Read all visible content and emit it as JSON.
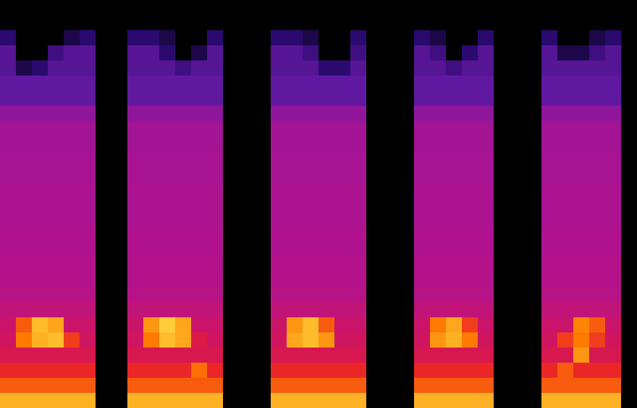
{
  "chart_data": {
    "type": "heatmap",
    "tick_labels": false,
    "grid": false,
    "xlim": [
      -0.5,
      39.5
    ],
    "ylim": [
      -0.5,
      26.5
    ],
    "zlim": [
      0,
      100
    ],
    "z": [
      [
        90,
        90,
        90,
        90,
        90,
        90,
        0,
        0,
        90,
        90,
        90,
        90,
        90,
        90,
        0,
        0,
        0,
        90,
        90,
        90,
        90,
        90,
        90,
        0,
        0,
        0,
        90,
        90,
        90,
        90,
        90,
        0,
        0,
        0,
        90,
        90,
        90,
        90,
        90,
        0
      ],
      [
        75,
        75,
        75,
        75,
        75,
        75,
        0,
        0,
        75,
        75,
        75,
        75,
        75,
        75,
        0,
        0,
        0,
        75,
        75,
        75,
        75,
        75,
        75,
        0,
        0,
        0,
        75,
        75,
        75,
        75,
        75,
        0,
        0,
        0,
        75,
        75,
        75,
        75,
        75,
        0
      ],
      [
        66,
        66,
        66,
        66,
        66,
        66,
        0,
        0,
        66,
        66,
        66,
        66,
        78,
        66,
        0,
        0,
        0,
        66,
        66,
        66,
        66,
        66,
        66,
        0,
        0,
        0,
        66,
        66,
        66,
        66,
        66,
        0,
        0,
        0,
        66,
        75,
        66,
        66,
        66,
        0
      ],
      [
        58,
        58,
        58,
        58,
        58,
        58,
        0,
        0,
        58,
        58,
        58,
        58,
        58,
        58,
        0,
        0,
        0,
        58,
        58,
        58,
        58,
        58,
        58,
        0,
        0,
        0,
        58,
        58,
        58,
        58,
        58,
        0,
        0,
        0,
        58,
        58,
        85,
        58,
        58,
        0
      ],
      [
        55,
        80,
        90,
        92,
        70,
        55,
        0,
        0,
        55,
        80,
        92,
        88,
        60,
        55,
        0,
        0,
        0,
        55,
        88,
        92,
        85,
        55,
        55,
        0,
        0,
        0,
        55,
        85,
        90,
        80,
        55,
        0,
        0,
        0,
        55,
        70,
        80,
        70,
        55,
        0
      ],
      [
        53,
        75,
        92,
        88,
        53,
        53,
        0,
        0,
        53,
        85,
        95,
        88,
        53,
        53,
        0,
        0,
        0,
        53,
        85,
        92,
        75,
        53,
        53,
        0,
        0,
        0,
        53,
        80,
        88,
        70,
        53,
        0,
        0,
        0,
        53,
        53,
        82,
        75,
        53,
        0
      ],
      [
        50,
        50,
        50,
        50,
        50,
        50,
        0,
        0,
        50,
        50,
        50,
        50,
        50,
        50,
        0,
        0,
        0,
        50,
        50,
        50,
        50,
        50,
        50,
        0,
        0,
        0,
        50,
        50,
        50,
        50,
        50,
        0,
        0,
        0,
        50,
        50,
        50,
        50,
        50,
        0
      ],
      [
        47,
        47,
        47,
        47,
        47,
        47,
        0,
        0,
        47,
        47,
        47,
        47,
        47,
        47,
        0,
        0,
        0,
        47,
        47,
        47,
        47,
        47,
        47,
        0,
        0,
        0,
        47,
        47,
        47,
        47,
        47,
        0,
        0,
        0,
        47,
        47,
        47,
        47,
        47,
        0
      ],
      [
        46,
        46,
        46,
        46,
        46,
        46,
        0,
        0,
        46,
        46,
        46,
        46,
        46,
        46,
        0,
        0,
        0,
        46,
        46,
        46,
        46,
        46,
        46,
        0,
        0,
        0,
        46,
        46,
        46,
        46,
        46,
        0,
        0,
        0,
        46,
        46,
        46,
        46,
        46,
        0
      ],
      [
        46,
        46,
        46,
        46,
        46,
        46,
        0,
        0,
        46,
        46,
        46,
        46,
        46,
        46,
        0,
        0,
        0,
        46,
        46,
        46,
        46,
        46,
        46,
        0,
        0,
        0,
        46,
        46,
        46,
        46,
        46,
        0,
        0,
        0,
        46,
        46,
        46,
        46,
        46,
        0
      ],
      [
        45,
        45,
        45,
        45,
        45,
        45,
        0,
        0,
        45,
        45,
        45,
        45,
        45,
        45,
        0,
        0,
        0,
        45,
        45,
        45,
        45,
        45,
        45,
        0,
        0,
        0,
        45,
        45,
        45,
        45,
        45,
        0,
        0,
        0,
        45,
        45,
        45,
        45,
        45,
        0
      ],
      [
        45,
        45,
        45,
        45,
        45,
        45,
        0,
        0,
        45,
        45,
        45,
        45,
        45,
        45,
        0,
        0,
        0,
        45,
        45,
        45,
        45,
        45,
        45,
        0,
        0,
        0,
        45,
        45,
        45,
        45,
        45,
        0,
        0,
        0,
        45,
        45,
        45,
        45,
        45,
        0
      ],
      [
        44,
        44,
        44,
        44,
        44,
        44,
        0,
        0,
        44,
        44,
        44,
        44,
        44,
        44,
        0,
        0,
        0,
        44,
        44,
        44,
        44,
        44,
        44,
        0,
        0,
        0,
        44,
        44,
        44,
        44,
        44,
        0,
        0,
        0,
        44,
        44,
        44,
        44,
        44,
        0
      ],
      [
        44,
        44,
        44,
        44,
        44,
        44,
        0,
        0,
        44,
        44,
        44,
        44,
        44,
        44,
        0,
        0,
        0,
        44,
        44,
        44,
        44,
        44,
        44,
        0,
        0,
        0,
        44,
        44,
        44,
        44,
        44,
        0,
        0,
        0,
        44,
        44,
        44,
        44,
        44,
        0
      ],
      [
        44,
        44,
        44,
        44,
        44,
        44,
        0,
        0,
        44,
        44,
        44,
        44,
        44,
        44,
        0,
        0,
        0,
        44,
        44,
        44,
        44,
        44,
        44,
        0,
        0,
        0,
        44,
        44,
        44,
        44,
        44,
        0,
        0,
        0,
        44,
        44,
        44,
        44,
        44,
        0
      ],
      [
        43,
        43,
        43,
        43,
        43,
        43,
        0,
        0,
        43,
        43,
        43,
        43,
        43,
        43,
        0,
        0,
        0,
        43,
        43,
        43,
        43,
        43,
        43,
        0,
        0,
        0,
        43,
        43,
        43,
        43,
        43,
        0,
        0,
        0,
        43,
        43,
        43,
        43,
        43,
        0
      ],
      [
        43,
        43,
        43,
        43,
        43,
        43,
        0,
        0,
        43,
        43,
        43,
        43,
        43,
        43,
        0,
        0,
        0,
        43,
        43,
        43,
        43,
        43,
        43,
        0,
        0,
        0,
        43,
        43,
        43,
        43,
        43,
        0,
        0,
        0,
        43,
        43,
        43,
        43,
        43,
        0
      ],
      [
        42,
        42,
        42,
        42,
        42,
        42,
        0,
        0,
        42,
        42,
        42,
        42,
        42,
        42,
        0,
        0,
        0,
        42,
        42,
        42,
        42,
        42,
        42,
        0,
        0,
        0,
        42,
        42,
        42,
        42,
        42,
        0,
        0,
        0,
        42,
        42,
        42,
        42,
        42,
        0
      ],
      [
        42,
        42,
        42,
        42,
        42,
        42,
        0,
        0,
        42,
        42,
        42,
        42,
        42,
        42,
        0,
        0,
        0,
        42,
        42,
        42,
        42,
        42,
        42,
        0,
        0,
        0,
        42,
        42,
        42,
        42,
        42,
        0,
        0,
        0,
        42,
        42,
        42,
        42,
        42,
        0
      ],
      [
        38,
        38,
        38,
        38,
        38,
        38,
        0,
        0,
        38,
        38,
        38,
        38,
        38,
        38,
        0,
        0,
        0,
        38,
        38,
        38,
        38,
        38,
        38,
        0,
        0,
        0,
        38,
        38,
        38,
        38,
        38,
        0,
        0,
        0,
        38,
        38,
        38,
        38,
        38,
        0
      ],
      [
        28,
        28,
        28,
        28,
        28,
        28,
        0,
        0,
        28,
        28,
        28,
        28,
        28,
        28,
        0,
        0,
        0,
        28,
        28,
        28,
        28,
        28,
        28,
        0,
        0,
        0,
        28,
        28,
        28,
        28,
        28,
        0,
        0,
        0,
        28,
        28,
        28,
        28,
        28,
        0
      ],
      [
        28,
        28,
        28,
        28,
        28,
        28,
        0,
        0,
        28,
        28,
        28,
        28,
        28,
        28,
        0,
        0,
        0,
        28,
        28,
        28,
        28,
        28,
        28,
        0,
        0,
        0,
        28,
        28,
        28,
        28,
        28,
        0,
        0,
        0,
        28,
        28,
        28,
        28,
        28,
        0
      ],
      [
        25,
        10,
        15,
        25,
        25,
        25,
        0,
        0,
        25,
        25,
        25,
        20,
        25,
        25,
        0,
        0,
        0,
        25,
        25,
        25,
        15,
        15,
        25,
        0,
        0,
        0,
        25,
        25,
        20,
        25,
        25,
        0,
        0,
        0,
        25,
        25,
        25,
        25,
        25,
        0
      ],
      [
        25,
        0,
        0,
        20,
        25,
        25,
        0,
        0,
        25,
        25,
        15,
        0,
        10,
        25,
        0,
        0,
        0,
        25,
        25,
        20,
        0,
        0,
        20,
        0,
        0,
        0,
        25,
        20,
        0,
        15,
        25,
        0,
        0,
        0,
        25,
        10,
        10,
        20,
        25,
        0
      ],
      [
        15,
        0,
        0,
        0,
        10,
        15,
        0,
        0,
        15,
        15,
        10,
        0,
        0,
        15,
        0,
        0,
        0,
        15,
        15,
        10,
        0,
        0,
        15,
        0,
        0,
        0,
        15,
        10,
        0,
        0,
        15,
        0,
        0,
        0,
        15,
        0,
        0,
        10,
        15,
        0
      ],
      [
        0,
        0,
        0,
        0,
        0,
        0,
        0,
        0,
        0,
        0,
        0,
        0,
        0,
        0,
        0,
        0,
        0,
        0,
        0,
        0,
        0,
        0,
        0,
        0,
        0,
        0,
        0,
        0,
        0,
        0,
        0,
        0,
        0,
        0,
        0,
        0,
        0,
        0,
        0,
        0
      ],
      [
        0,
        0,
        0,
        0,
        0,
        0,
        0,
        0,
        0,
        0,
        0,
        0,
        0,
        0,
        0,
        0,
        0,
        0,
        0,
        0,
        0,
        0,
        0,
        0,
        0,
        0,
        0,
        0,
        0,
        0,
        0,
        0,
        0,
        0,
        0,
        0,
        0,
        0,
        0,
        0
      ]
    ]
  }
}
